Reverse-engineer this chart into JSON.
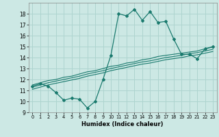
{
  "x_data": [
    0,
    1,
    2,
    3,
    4,
    5,
    6,
    7,
    8,
    9,
    10,
    11,
    12,
    13,
    14,
    15,
    16,
    17,
    18,
    19,
    20,
    21,
    22,
    23
  ],
  "y_main": [
    11.4,
    11.6,
    11.4,
    10.8,
    10.1,
    10.3,
    10.2,
    9.4,
    10.0,
    12.0,
    14.2,
    18.0,
    17.8,
    18.4,
    17.4,
    18.2,
    17.2,
    17.3,
    15.7,
    14.3,
    14.3,
    13.9,
    14.8,
    15.0
  ],
  "y_line1": [
    11.5,
    11.7,
    11.9,
    12.0,
    12.2,
    12.3,
    12.5,
    12.7,
    12.8,
    13.0,
    13.2,
    13.3,
    13.5,
    13.6,
    13.8,
    13.9,
    14.1,
    14.2,
    14.3,
    14.4,
    14.5,
    14.6,
    14.8,
    14.95
  ],
  "y_line2": [
    11.3,
    11.5,
    11.7,
    11.85,
    12.0,
    12.15,
    12.3,
    12.5,
    12.65,
    12.8,
    13.0,
    13.15,
    13.3,
    13.45,
    13.6,
    13.7,
    13.85,
    14.0,
    14.1,
    14.2,
    14.35,
    14.45,
    14.6,
    14.75
  ],
  "y_line3": [
    11.1,
    11.3,
    11.5,
    11.65,
    11.8,
    11.95,
    12.1,
    12.3,
    12.45,
    12.6,
    12.8,
    12.95,
    13.1,
    13.25,
    13.4,
    13.5,
    13.65,
    13.8,
    13.9,
    14.0,
    14.15,
    14.25,
    14.4,
    14.55
  ],
  "color_main": "#1a7a6e",
  "color_lines": "#1a7a6e",
  "bg_color": "#cce8e4",
  "grid_color": "#aed4cf",
  "xlabel": "Humidex (Indice chaleur)",
  "xlim": [
    -0.5,
    23.5
  ],
  "ylim": [
    9,
    19
  ],
  "yticks": [
    9,
    10,
    11,
    12,
    13,
    14,
    15,
    16,
    17,
    18
  ],
  "xticks": [
    0,
    1,
    2,
    3,
    4,
    5,
    6,
    7,
    8,
    9,
    10,
    11,
    12,
    13,
    14,
    15,
    16,
    17,
    18,
    19,
    20,
    21,
    22,
    23
  ]
}
